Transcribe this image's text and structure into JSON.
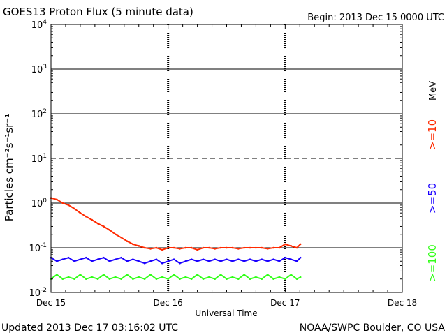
{
  "chart_data": {
    "type": "line",
    "title": "GOES13 Proton Flux (5 minute data)",
    "begin_label": "Begin: 2013 Dec 15 0000 UTC",
    "ylabel": "Particles cm⁻²s⁻¹sr⁻¹",
    "xlabel": "Universal Time",
    "yscale": "log",
    "ylim": [
      0.01,
      10000
    ],
    "xlim_days": [
      0,
      3
    ],
    "y_ticks": [
      {
        "value": 10000,
        "base": "10",
        "exp": "4"
      },
      {
        "value": 1000,
        "base": "10",
        "exp": "3"
      },
      {
        "value": 100,
        "base": "10",
        "exp": "2"
      },
      {
        "value": 10,
        "base": "10",
        "exp": "1"
      },
      {
        "value": 1,
        "base": "10",
        "exp": "0"
      },
      {
        "value": 0.1,
        "base": "10",
        "exp": "-1"
      },
      {
        "value": 0.01,
        "base": "10",
        "exp": "-2"
      }
    ],
    "x_ticks": [
      {
        "day": 0,
        "label": "Dec 15"
      },
      {
        "day": 1,
        "label": "Dec 16"
      },
      {
        "day": 2,
        "label": "Dec 17"
      },
      {
        "day": 3,
        "label": "Dec 18"
      }
    ],
    "threshold_line_values": [
      1000,
      100,
      10,
      1,
      0.1
    ],
    "dashed_threshold_value": 10,
    "legend_unit": "MeV",
    "series": [
      {
        "name": ">=10",
        "color": "#ff2a00",
        "x_days": [
          0.0,
          0.05,
          0.1,
          0.15,
          0.2,
          0.25,
          0.3,
          0.35,
          0.4,
          0.45,
          0.5,
          0.55,
          0.6,
          0.65,
          0.7,
          0.75,
          0.8,
          0.85,
          0.9,
          0.95,
          1.0,
          1.05,
          1.1,
          1.15,
          1.2,
          1.25,
          1.3,
          1.35,
          1.4,
          1.45,
          1.5,
          1.55,
          1.6,
          1.65,
          1.7,
          1.75,
          1.8,
          1.85,
          1.9,
          1.95,
          2.0,
          2.05,
          2.1,
          2.13
        ],
        "values": [
          1.3,
          1.2,
          1.0,
          0.9,
          0.75,
          0.6,
          0.5,
          0.42,
          0.35,
          0.3,
          0.25,
          0.2,
          0.17,
          0.14,
          0.12,
          0.11,
          0.1,
          0.095,
          0.1,
          0.09,
          0.1,
          0.1,
          0.095,
          0.1,
          0.1,
          0.09,
          0.1,
          0.1,
          0.095,
          0.1,
          0.1,
          0.1,
          0.095,
          0.1,
          0.1,
          0.1,
          0.1,
          0.095,
          0.1,
          0.1,
          0.12,
          0.11,
          0.1,
          0.12
        ]
      },
      {
        "name": ">=50",
        "color": "#1a00ff",
        "x_days": [
          0.0,
          0.05,
          0.1,
          0.15,
          0.2,
          0.25,
          0.3,
          0.35,
          0.4,
          0.45,
          0.5,
          0.55,
          0.6,
          0.65,
          0.7,
          0.75,
          0.8,
          0.85,
          0.9,
          0.95,
          1.0,
          1.05,
          1.1,
          1.15,
          1.2,
          1.25,
          1.3,
          1.35,
          1.4,
          1.45,
          1.5,
          1.55,
          1.6,
          1.65,
          1.7,
          1.75,
          1.8,
          1.85,
          1.9,
          1.95,
          2.0,
          2.05,
          2.1,
          2.13
        ],
        "values": [
          0.06,
          0.05,
          0.055,
          0.06,
          0.05,
          0.055,
          0.06,
          0.05,
          0.055,
          0.06,
          0.05,
          0.055,
          0.06,
          0.05,
          0.055,
          0.05,
          0.045,
          0.05,
          0.055,
          0.045,
          0.05,
          0.055,
          0.045,
          0.05,
          0.055,
          0.05,
          0.055,
          0.05,
          0.055,
          0.05,
          0.055,
          0.05,
          0.055,
          0.05,
          0.055,
          0.05,
          0.055,
          0.05,
          0.055,
          0.05,
          0.06,
          0.055,
          0.05,
          0.06
        ]
      },
      {
        "name": ">=100",
        "color": "#33ff1a",
        "x_days": [
          0.0,
          0.05,
          0.1,
          0.15,
          0.2,
          0.25,
          0.3,
          0.35,
          0.4,
          0.45,
          0.5,
          0.55,
          0.6,
          0.65,
          0.7,
          0.75,
          0.8,
          0.85,
          0.9,
          0.95,
          1.0,
          1.05,
          1.1,
          1.15,
          1.2,
          1.25,
          1.3,
          1.35,
          1.4,
          1.45,
          1.5,
          1.55,
          1.6,
          1.65,
          1.7,
          1.75,
          1.8,
          1.85,
          1.9,
          1.95,
          2.0,
          2.05,
          2.1,
          2.13
        ],
        "values": [
          0.02,
          0.025,
          0.02,
          0.022,
          0.02,
          0.025,
          0.02,
          0.022,
          0.02,
          0.025,
          0.02,
          0.022,
          0.02,
          0.025,
          0.02,
          0.022,
          0.02,
          0.025,
          0.02,
          0.022,
          0.02,
          0.025,
          0.02,
          0.022,
          0.02,
          0.025,
          0.02,
          0.022,
          0.02,
          0.025,
          0.02,
          0.022,
          0.02,
          0.025,
          0.02,
          0.022,
          0.02,
          0.025,
          0.02,
          0.022,
          0.02,
          0.025,
          0.02,
          0.022
        ]
      }
    ],
    "footer_left": "Updated 2013 Dec 17 03:16:02 UTC",
    "footer_right": "NOAA/SWPC Boulder, CO USA"
  }
}
